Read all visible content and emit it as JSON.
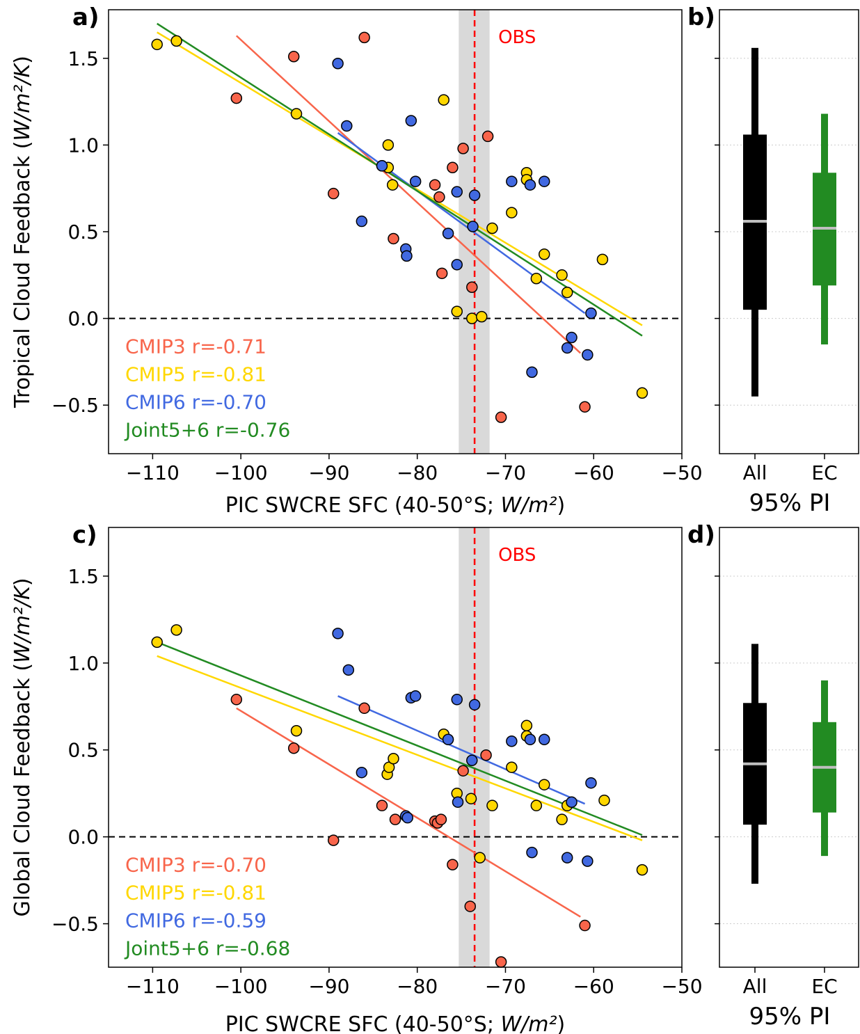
{
  "chart_data": [
    {
      "panel": "a)",
      "type": "scatter",
      "xlabel": "PIC SWCRE SFC (40-50°S; W/m²)",
      "ylabel": "Tropical Cloud Feedback (W/m²/K)",
      "xlim": [
        -115,
        -50
      ],
      "ylim": [
        -0.78,
        1.78
      ],
      "xticks": [
        -110,
        -100,
        -90,
        -80,
        -70,
        -60,
        -50
      ],
      "yticks": [
        -0.5,
        0.0,
        0.5,
        1.0,
        1.5
      ],
      "obs": {
        "label": "OBS",
        "x": -73.5,
        "band": [
          -75.3,
          -71.8
        ]
      },
      "series": [
        {
          "name": "CMIP3",
          "color": "#f8654b",
          "points": [
            [
              -100.5,
              1.27
            ],
            [
              -94,
              1.51
            ],
            [
              -86,
              1.62
            ],
            [
              -89.5,
              0.72
            ],
            [
              -84,
              0.88
            ],
            [
              -82.7,
              0.46
            ],
            [
              -78,
              0.77
            ],
            [
              -77.5,
              0.7
            ],
            [
              -77.2,
              0.26
            ],
            [
              -76,
              0.87
            ],
            [
              -74.8,
              0.98
            ],
            [
              -73.8,
              0.18
            ],
            [
              -72,
              1.05
            ],
            [
              -70.5,
              -0.57
            ],
            [
              -61,
              -0.51
            ]
          ],
          "fit": [
            [
              -100.5,
              1.63
            ],
            [
              -61.5,
              -0.2
            ]
          ],
          "legend": "CMIP3 r=-0.71"
        },
        {
          "name": "CMIP5",
          "color": "#ffd700",
          "points": [
            [
              -109.5,
              1.58
            ],
            [
              -107.3,
              1.6
            ],
            [
              -93.7,
              1.18
            ],
            [
              -83.3,
              1.0
            ],
            [
              -83.3,
              0.87
            ],
            [
              -82.8,
              0.77
            ],
            [
              -77,
              1.26
            ],
            [
              -75.5,
              0.04
            ],
            [
              -73.8,
              0.0
            ],
            [
              -72.7,
              0.01
            ],
            [
              -71.5,
              0.52
            ],
            [
              -69.3,
              0.61
            ],
            [
              -67.6,
              0.84
            ],
            [
              -67.6,
              0.8
            ],
            [
              -66.5,
              0.23
            ],
            [
              -65.6,
              0.37
            ],
            [
              -63.6,
              0.25
            ],
            [
              -63,
              0.15
            ],
            [
              -59,
              0.34
            ],
            [
              -54.5,
              -0.43
            ]
          ],
          "fit": [
            [
              -109.5,
              1.65
            ],
            [
              -54.5,
              -0.04
            ]
          ],
          "legend": "CMIP5 r=-0.81"
        },
        {
          "name": "CMIP6",
          "color": "#4169e1",
          "points": [
            [
              -89,
              1.47
            ],
            [
              -88,
              1.11
            ],
            [
              -86.3,
              0.56
            ],
            [
              -84,
              0.88
            ],
            [
              -81.3,
              0.4
            ],
            [
              -81.2,
              0.36
            ],
            [
              -80.7,
              1.14
            ],
            [
              -80.2,
              0.79
            ],
            [
              -76.5,
              0.49
            ],
            [
              -75.5,
              0.73
            ],
            [
              -75.5,
              0.31
            ],
            [
              -73.7,
              0.53
            ],
            [
              -73.5,
              0.71
            ],
            [
              -69.3,
              0.79
            ],
            [
              -67.2,
              0.77
            ],
            [
              -67,
              -0.31
            ],
            [
              -65.6,
              0.79
            ],
            [
              -63,
              -0.17
            ],
            [
              -62.5,
              -0.11
            ],
            [
              -60.7,
              -0.21
            ],
            [
              -60.3,
              0.03
            ]
          ],
          "fit": [
            [
              -89,
              1.07
            ],
            [
              -61,
              0.03
            ]
          ],
          "legend": "CMIP6 r=-0.70"
        },
        {
          "name": "Joint5+6",
          "color": "#228b22",
          "points": [],
          "fit": [
            [
              -109.5,
              1.7
            ],
            [
              -54.5,
              -0.1
            ]
          ],
          "legend": "Joint5+6 r=-0.76"
        }
      ]
    },
    {
      "panel": "c)",
      "type": "scatter",
      "xlabel": "PIC SWCRE SFC (40-50°S; W/m²)",
      "ylabel": "Global Cloud Feedback (W/m²/K)",
      "xlim": [
        -115,
        -50
      ],
      "ylim": [
        -0.75,
        1.78
      ],
      "xticks": [
        -110,
        -100,
        -90,
        -80,
        -70,
        -60,
        -50
      ],
      "yticks": [
        -0.5,
        0.0,
        0.5,
        1.0,
        1.5
      ],
      "obs": {
        "label": "OBS",
        "x": -73.5,
        "band": [
          -75.3,
          -71.8
        ]
      },
      "series": [
        {
          "name": "CMIP3",
          "color": "#f8654b",
          "points": [
            [
              -100.5,
              0.79
            ],
            [
              -94,
              0.51
            ],
            [
              -89.5,
              -0.02
            ],
            [
              -86,
              0.74
            ],
            [
              -84,
              0.18
            ],
            [
              -82.5,
              0.1
            ],
            [
              -78,
              0.09
            ],
            [
              -77.7,
              0.08
            ],
            [
              -77.3,
              0.1
            ],
            [
              -76,
              -0.16
            ],
            [
              -74.8,
              0.38
            ],
            [
              -74,
              -0.4
            ],
            [
              -72.2,
              0.47
            ],
            [
              -70.5,
              -0.72
            ],
            [
              -61,
              -0.51
            ]
          ],
          "fit": [
            [
              -100.5,
              0.74
            ],
            [
              -61.5,
              -0.46
            ]
          ],
          "legend": "CMIP3 r=-0.70"
        },
        {
          "name": "CMIP5",
          "color": "#ffd700",
          "points": [
            [
              -109.5,
              1.12
            ],
            [
              -107.3,
              1.19
            ],
            [
              -93.7,
              0.61
            ],
            [
              -83.4,
              0.36
            ],
            [
              -83.2,
              0.4
            ],
            [
              -82.7,
              0.45
            ],
            [
              -77,
              0.59
            ],
            [
              -75.5,
              0.25
            ],
            [
              -73.9,
              0.22
            ],
            [
              -72.9,
              -0.12
            ],
            [
              -71.5,
              0.18
            ],
            [
              -69.3,
              0.4
            ],
            [
              -67.6,
              0.64
            ],
            [
              -67.6,
              0.58
            ],
            [
              -66.5,
              0.18
            ],
            [
              -65.6,
              0.3
            ],
            [
              -63.6,
              0.1
            ],
            [
              -63,
              0.18
            ],
            [
              -58.8,
              0.21
            ],
            [
              -54.5,
              -0.19
            ]
          ],
          "fit": [
            [
              -109.5,
              1.04
            ],
            [
              -54.5,
              -0.02
            ]
          ],
          "legend": "CMIP5 r=-0.81"
        },
        {
          "name": "CMIP6",
          "color": "#4169e1",
          "points": [
            [
              -89,
              1.17
            ],
            [
              -87.8,
              0.96
            ],
            [
              -86.3,
              0.37
            ],
            [
              -81.3,
              0.12
            ],
            [
              -81.1,
              0.11
            ],
            [
              -80.7,
              0.8
            ],
            [
              -80.2,
              0.81
            ],
            [
              -76.5,
              0.56
            ],
            [
              -75.5,
              0.79
            ],
            [
              -75.4,
              0.2
            ],
            [
              -73.8,
              0.44
            ],
            [
              -73.5,
              0.76
            ],
            [
              -69.3,
              0.55
            ],
            [
              -67.2,
              0.56
            ],
            [
              -67,
              -0.09
            ],
            [
              -65.6,
              0.56
            ],
            [
              -63,
              -0.12
            ],
            [
              -62.5,
              0.2
            ],
            [
              -60.7,
              -0.14
            ],
            [
              -60.3,
              0.31
            ]
          ],
          "fit": [
            [
              -89,
              0.81
            ],
            [
              -61,
              0.19
            ]
          ],
          "legend": "CMIP6 r=-0.59"
        },
        {
          "name": "Joint5+6",
          "color": "#228b22",
          "points": [],
          "fit": [
            [
              -109.5,
              1.12
            ],
            [
              -54.5,
              0.01
            ]
          ],
          "legend": "Joint5+6 r=-0.68"
        }
      ]
    },
    {
      "panel": "b)",
      "type": "box",
      "ylim": [
        -0.78,
        1.78
      ],
      "categories": [
        "All",
        "EC"
      ],
      "xlabel": "95% PI",
      "boxes": [
        {
          "name": "All",
          "color": "#000000",
          "low": -0.45,
          "q1": 0.05,
          "median": 0.56,
          "q3": 1.06,
          "high": 1.56
        },
        {
          "name": "EC",
          "color": "#228b22",
          "low": -0.15,
          "q1": 0.19,
          "median": 0.52,
          "q3": 0.84,
          "high": 1.18
        }
      ]
    },
    {
      "panel": "d)",
      "type": "box",
      "ylim": [
        -0.75,
        1.78
      ],
      "categories": [
        "All",
        "EC"
      ],
      "xlabel": "95% PI",
      "boxes": [
        {
          "name": "All",
          "color": "#000000",
          "low": -0.27,
          "q1": 0.07,
          "median": 0.42,
          "q3": 0.77,
          "high": 1.11
        },
        {
          "name": "EC",
          "color": "#228b22",
          "low": -0.11,
          "q1": 0.14,
          "median": 0.4,
          "q3": 0.66,
          "high": 0.9
        }
      ]
    }
  ]
}
